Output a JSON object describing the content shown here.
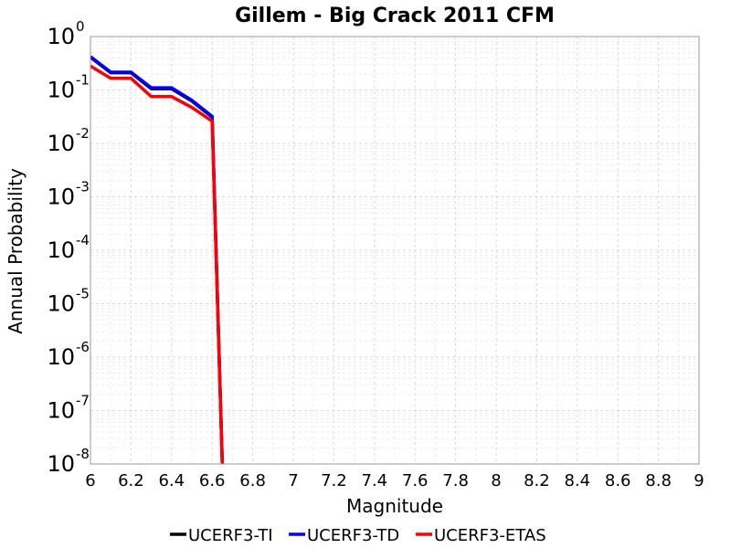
{
  "chart_data": {
    "type": "line",
    "title": "Gillem - Big Crack 2011 CFM",
    "xlabel": "Magnitude",
    "ylabel": "Annual Probability",
    "xlim": [
      6,
      9
    ],
    "ylim": [
      1e-08,
      1
    ],
    "yscale": "log",
    "grid": true,
    "legend_position": "bottom",
    "x_ticks": [
      "6",
      "6.2",
      "6.4",
      "6.6",
      "6.8",
      "7",
      "7.2",
      "7.4",
      "7.6",
      "7.8",
      "8",
      "8.2",
      "8.4",
      "8.6",
      "8.8",
      "9"
    ],
    "y_ticks": [
      {
        "base": "10",
        "exp": "0"
      },
      {
        "base": "10",
        "exp": "-1"
      },
      {
        "base": "10",
        "exp": "-2"
      },
      {
        "base": "10",
        "exp": "-3"
      },
      {
        "base": "10",
        "exp": "-4"
      },
      {
        "base": "10",
        "exp": "-5"
      },
      {
        "base": "10",
        "exp": "-6"
      },
      {
        "base": "10",
        "exp": "-7"
      },
      {
        "base": "10",
        "exp": "-8"
      }
    ],
    "series": [
      {
        "name": "UCERF3-TI",
        "color": "#000000",
        "x": [
          6.0,
          6.1,
          6.2,
          6.3,
          6.4,
          6.5,
          6.6,
          6.65
        ],
        "y": [
          0.41,
          0.21,
          0.21,
          0.105,
          0.105,
          0.062,
          0.031,
          1e-08
        ]
      },
      {
        "name": "UCERF3-TD",
        "color": "#0000ff",
        "x": [
          6.0,
          6.1,
          6.2,
          6.3,
          6.4,
          6.5,
          6.6,
          6.65
        ],
        "y": [
          0.42,
          0.215,
          0.215,
          0.11,
          0.11,
          0.064,
          0.032,
          1e-08
        ]
      },
      {
        "name": "UCERF3-ETAS",
        "color": "#ff0000",
        "x": [
          6.0,
          6.1,
          6.2,
          6.3,
          6.4,
          6.5,
          6.6,
          6.65
        ],
        "y": [
          0.28,
          0.165,
          0.165,
          0.075,
          0.075,
          0.047,
          0.026,
          1e-08
        ]
      }
    ]
  }
}
